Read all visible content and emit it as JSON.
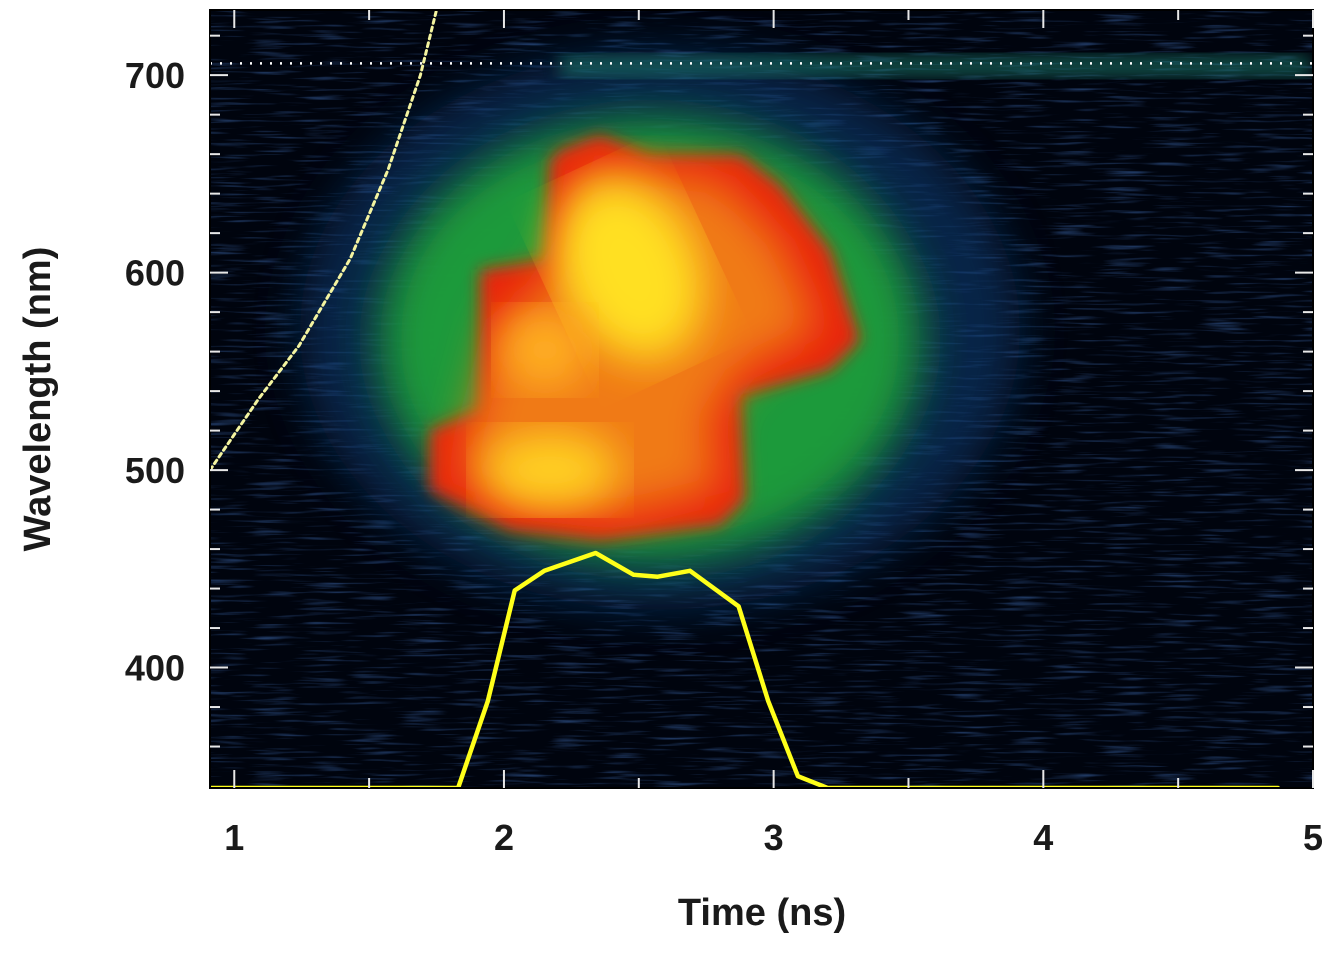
{
  "chart_data": {
    "type": "line",
    "xlabel": "Time (ns)",
    "ylabel": "Wavelength (nm)",
    "xlim": [
      0.91,
      5
    ],
    "ylim": [
      339,
      733
    ],
    "xticks": [
      1,
      2,
      3,
      4,
      5
    ],
    "yticks": [
      400,
      500,
      600,
      700
    ],
    "hlines": [
      {
        "value": 706,
        "color": "#ffffff"
      }
    ],
    "series": [
      {
        "color": "#ffff1a",
        "dash": false,
        "x": [
          0.91,
          1.83,
          1.94,
          2.04,
          2.15,
          2.34,
          2.48,
          2.57,
          2.69,
          2.87,
          2.98,
          3.09,
          3.2,
          4.87
        ],
        "values": [
          339,
          339,
          383,
          439,
          449,
          458,
          447,
          446,
          449,
          431,
          383,
          345,
          339,
          339
        ]
      },
      {
        "color": "#f4f4a0",
        "dash": true,
        "x": [
          0.91,
          1.09,
          1.24,
          1.43,
          1.57,
          1.69,
          1.75
        ],
        "values": [
          500,
          536,
          563,
          607,
          652,
          700,
          733
        ]
      }
    ]
  }
}
